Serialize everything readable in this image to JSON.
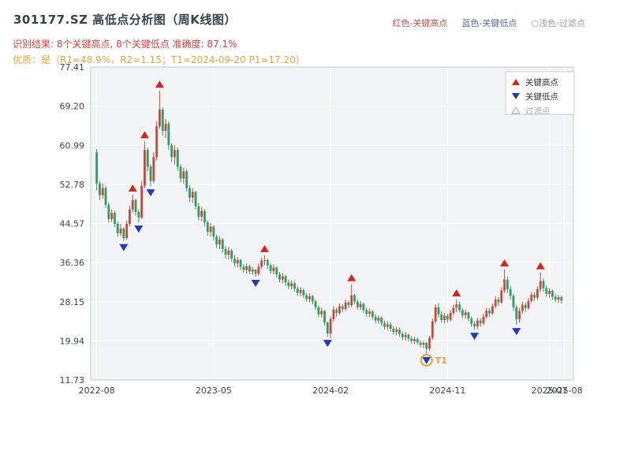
{
  "header": {
    "title": "301177.SZ 高低点分析图（周K线图）",
    "top_legend": [
      {
        "label": "红色-关键高点",
        "color": "#b5524c"
      },
      {
        "label": "蓝色-关键低点",
        "color": "#5a6b9b"
      },
      {
        "label": "○浅色-过滤点",
        "color": "#9b9b9b"
      }
    ],
    "result_line": "识别结果: 8个关键高点, 8个关键低点  准确度: 87.1%",
    "result_color": "#d9403f",
    "quality_line": "优质：是（R1=48.9%，R2=1.15；T1=2024-09-20 P1=17.20）",
    "quality_color": "#e5a23c"
  },
  "chart_data": {
    "type": "candlestick",
    "title": "301177.SZ 高低点分析图（周K线图）",
    "period": "周K线",
    "ylim": [
      11.73,
      77.41
    ],
    "xlim": [
      -2,
      159
    ],
    "y_tick_labels": [
      "77.41",
      "69.20",
      "60.99",
      "52.78",
      "44.57",
      "36.36",
      "28.15",
      "19.94",
      "11.73"
    ],
    "x_ticks": [
      {
        "i": 0,
        "label": "2022-08"
      },
      {
        "i": 39,
        "label": "2023-05"
      },
      {
        "i": 78,
        "label": "2024-02"
      },
      {
        "i": 117,
        "label": "2024-11"
      },
      {
        "i": 151,
        "label": "2025-07"
      },
      {
        "i": 156,
        "label": "2025-08"
      }
    ],
    "first_open": 59.5,
    "hlc": [
      [
        60.2,
        51.5,
        53.0
      ],
      [
        53.5,
        49.5,
        50.5
      ],
      [
        53.0,
        49.8,
        52.0
      ],
      [
        52.5,
        47.8,
        48.5
      ],
      [
        49.0,
        44.8,
        45.5
      ],
      [
        47.5,
        44.9,
        46.8
      ],
      [
        47.2,
        43.8,
        44.5
      ],
      [
        45.0,
        41.8,
        42.5
      ],
      [
        44.5,
        41.9,
        43.5
      ],
      [
        43.8,
        40.9,
        41.5
      ],
      [
        45.2,
        41.2,
        44.5
      ],
      [
        48.3,
        44.0,
        47.5
      ],
      [
        50.6,
        46.8,
        49.5
      ],
      [
        49.8,
        46.2,
        47.0
      ],
      [
        47.5,
        44.8,
        45.8
      ],
      [
        53.5,
        45.5,
        52.5
      ],
      [
        61.8,
        52.0,
        60.0
      ],
      [
        60.5,
        55.5,
        56.5
      ],
      [
        57.0,
        52.4,
        53.5
      ],
      [
        59.5,
        53.0,
        58.5
      ],
      [
        66.0,
        57.8,
        65.0
      ],
      [
        72.4,
        64.5,
        68.5
      ],
      [
        69.0,
        63.0,
        64.0
      ],
      [
        66.5,
        62.5,
        65.5
      ],
      [
        66.0,
        60.0,
        61.0
      ],
      [
        61.5,
        57.5,
        58.5
      ],
      [
        61.0,
        57.0,
        60.0
      ],
      [
        60.5,
        55.6,
        56.5
      ],
      [
        57.0,
        53.2,
        54.0
      ],
      [
        56.3,
        52.9,
        55.5
      ],
      [
        56.0,
        51.2,
        52.0
      ],
      [
        52.6,
        49.0,
        50.0
      ],
      [
        52.0,
        48.9,
        51.2
      ],
      [
        51.5,
        47.5,
        48.2
      ],
      [
        48.8,
        45.2,
        46.0
      ],
      [
        48.0,
        45.0,
        47.2
      ],
      [
        47.6,
        44.0,
        44.8
      ],
      [
        45.2,
        42.0,
        42.8
      ],
      [
        44.6,
        41.8,
        43.9
      ],
      [
        44.2,
        41.0,
        41.8
      ],
      [
        42.2,
        39.4,
        40.2
      ],
      [
        41.9,
        39.2,
        41.2
      ],
      [
        41.5,
        38.4,
        39.2
      ],
      [
        39.8,
        37.2,
        38.0
      ],
      [
        39.6,
        37.0,
        38.9
      ],
      [
        39.3,
        36.5,
        37.2
      ],
      [
        38.0,
        35.5,
        36.2
      ],
      [
        37.5,
        35.3,
        36.9
      ],
      [
        37.2,
        34.8,
        35.5
      ],
      [
        36.0,
        34.2,
        34.8
      ],
      [
        36.2,
        34.0,
        35.6
      ],
      [
        35.9,
        33.9,
        34.5
      ],
      [
        35.5,
        33.8,
        34.9
      ],
      [
        35.0,
        33.4,
        34.0
      ],
      [
        36.2,
        33.6,
        35.5
      ],
      [
        37.4,
        35.0,
        36.8
      ],
      [
        37.9,
        35.8,
        36.9
      ],
      [
        37.2,
        35.0,
        35.8
      ],
      [
        36.3,
        34.0,
        34.6
      ],
      [
        36.0,
        33.9,
        35.3
      ],
      [
        35.6,
        33.2,
        33.9
      ],
      [
        34.4,
        32.2,
        32.8
      ],
      [
        34.2,
        32.0,
        33.5
      ],
      [
        33.8,
        31.5,
        32.2
      ],
      [
        32.8,
        30.8,
        31.4
      ],
      [
        32.6,
        30.7,
        32.0
      ],
      [
        32.4,
        30.2,
        30.9
      ],
      [
        31.4,
        29.4,
        30.0
      ],
      [
        31.2,
        29.3,
        30.6
      ],
      [
        30.9,
        28.9,
        29.5
      ],
      [
        30.0,
        28.1,
        28.7
      ],
      [
        29.9,
        28.0,
        29.3
      ],
      [
        29.6,
        27.6,
        28.2
      ],
      [
        28.6,
        26.4,
        27.0
      ],
      [
        27.4,
        24.9,
        25.5
      ],
      [
        26.9,
        24.8,
        26.2
      ],
      [
        26.4,
        23.2,
        23.8
      ],
      [
        24.0,
        20.8,
        21.5
      ],
      [
        25.0,
        20.5,
        24.5
      ],
      [
        27.2,
        24.0,
        26.5
      ],
      [
        27.0,
        25.0,
        25.8
      ],
      [
        27.8,
        25.4,
        27.2
      ],
      [
        27.6,
        25.9,
        26.6
      ],
      [
        28.6,
        26.2,
        28.0
      ],
      [
        28.4,
        26.8,
        27.4
      ],
      [
        31.8,
        27.0,
        29.5
      ],
      [
        29.8,
        27.6,
        28.2
      ],
      [
        28.7,
        26.5,
        27.0
      ],
      [
        28.3,
        26.4,
        27.7
      ],
      [
        28.0,
        25.8,
        26.4
      ],
      [
        26.9,
        25.0,
        25.6
      ],
      [
        26.7,
        24.9,
        26.1
      ],
      [
        26.4,
        24.4,
        25.0
      ],
      [
        25.5,
        23.6,
        24.2
      ],
      [
        25.3,
        23.5,
        24.8
      ],
      [
        25.1,
        23.1,
        23.7
      ],
      [
        24.2,
        22.3,
        22.9
      ],
      [
        24.0,
        22.2,
        23.4
      ],
      [
        23.8,
        21.9,
        22.5
      ],
      [
        23.0,
        21.2,
        21.8
      ],
      [
        22.9,
        21.1,
        22.3
      ],
      [
        22.7,
        20.8,
        21.4
      ],
      [
        21.9,
        20.1,
        20.7
      ],
      [
        21.8,
        20.0,
        21.2
      ],
      [
        21.5,
        19.8,
        20.4
      ],
      [
        20.9,
        19.4,
        19.9
      ],
      [
        20.8,
        19.3,
        20.3
      ],
      [
        20.6,
        19.1,
        19.6
      ],
      [
        20.0,
        18.6,
        19.1
      ],
      [
        19.9,
        18.4,
        19.5
      ],
      [
        19.7,
        17.2,
        18.3
      ],
      [
        21.0,
        17.8,
        20.6
      ],
      [
        24.6,
        20.2,
        24.0
      ],
      [
        27.6,
        23.5,
        27.0
      ],
      [
        27.9,
        24.8,
        25.5
      ],
      [
        26.2,
        23.7,
        24.3
      ],
      [
        25.8,
        23.6,
        25.2
      ],
      [
        25.6,
        23.8,
        24.4
      ],
      [
        26.4,
        24.0,
        25.8
      ],
      [
        27.5,
        25.3,
        26.9
      ],
      [
        28.6,
        26.0,
        27.6
      ],
      [
        28.2,
        25.8,
        26.4
      ],
      [
        26.8,
        24.7,
        25.3
      ],
      [
        26.5,
        24.6,
        25.9
      ],
      [
        26.1,
        24.0,
        24.6
      ],
      [
        25.0,
        22.9,
        23.5
      ],
      [
        24.1,
        22.3,
        23.0
      ],
      [
        24.8,
        22.5,
        24.2
      ],
      [
        24.7,
        22.9,
        23.6
      ],
      [
        25.6,
        23.2,
        25.0
      ],
      [
        26.9,
        24.6,
        26.3
      ],
      [
        26.8,
        25.0,
        25.7
      ],
      [
        27.8,
        25.4,
        27.2
      ],
      [
        29.3,
        26.8,
        28.6
      ],
      [
        29.1,
        27.3,
        28.0
      ],
      [
        31.2,
        27.7,
        30.5
      ],
      [
        34.9,
        30.0,
        32.8
      ],
      [
        33.4,
        30.0,
        30.8
      ],
      [
        31.5,
        28.6,
        29.4
      ],
      [
        29.8,
        26.2,
        27.0
      ],
      [
        27.4,
        23.3,
        24.5
      ],
      [
        26.8,
        23.8,
        26.2
      ],
      [
        28.1,
        25.6,
        27.5
      ],
      [
        28.0,
        26.0,
        26.8
      ],
      [
        28.9,
        26.4,
        28.3
      ],
      [
        30.2,
        27.9,
        29.6
      ],
      [
        30.1,
        28.3,
        29.0
      ],
      [
        31.4,
        28.6,
        30.8
      ],
      [
        34.3,
        30.2,
        32.5
      ],
      [
        33.0,
        30.3,
        31.0
      ],
      [
        31.6,
        29.2,
        29.8
      ],
      [
        31.0,
        29.0,
        30.4
      ],
      [
        30.7,
        28.6,
        29.2
      ],
      [
        29.8,
        28.0,
        28.6
      ],
      [
        29.6,
        27.9,
        29.1
      ],
      [
        29.4,
        27.8,
        28.4
      ]
    ],
    "key_highs": [
      {
        "i": 12,
        "price": 50.6
      },
      {
        "i": 16,
        "price": 61.8
      },
      {
        "i": 21,
        "price": 72.4
      },
      {
        "i": 56,
        "price": 37.9
      },
      {
        "i": 85,
        "price": 31.8
      },
      {
        "i": 120,
        "price": 28.6
      },
      {
        "i": 136,
        "price": 34.9
      },
      {
        "i": 148,
        "price": 34.3
      }
    ],
    "key_lows": [
      {
        "i": 9,
        "price": 40.9
      },
      {
        "i": 14,
        "price": 44.8
      },
      {
        "i": 18,
        "price": 52.4
      },
      {
        "i": 53,
        "price": 33.4
      },
      {
        "i": 77,
        "price": 20.8
      },
      {
        "i": 110,
        "price": 17.2
      },
      {
        "i": 126,
        "price": 22.3
      },
      {
        "i": 140,
        "price": 23.3
      }
    ],
    "t1": {
      "i": 110,
      "price": 17.2,
      "label": "T1",
      "date": "2024-09-20"
    },
    "legend": [
      {
        "label": "关键高点",
        "marker": "triangle-up",
        "color": "#d2281c"
      },
      {
        "label": "关键低点",
        "marker": "triangle-down",
        "color": "#2637b8"
      },
      {
        "label": "过滤点",
        "marker": "triangle-open",
        "color": "#b0b0b0"
      }
    ],
    "colors": {
      "up": "#c9473f",
      "down": "#2f9c63",
      "marker_high": "#d2281c",
      "marker_low": "#2637b8",
      "t1": "#e5a23c",
      "plot_bg": "#f2f3f4",
      "grid": "#ffffff",
      "frame": "#c3c8cc",
      "tick": "#3c4249"
    }
  }
}
